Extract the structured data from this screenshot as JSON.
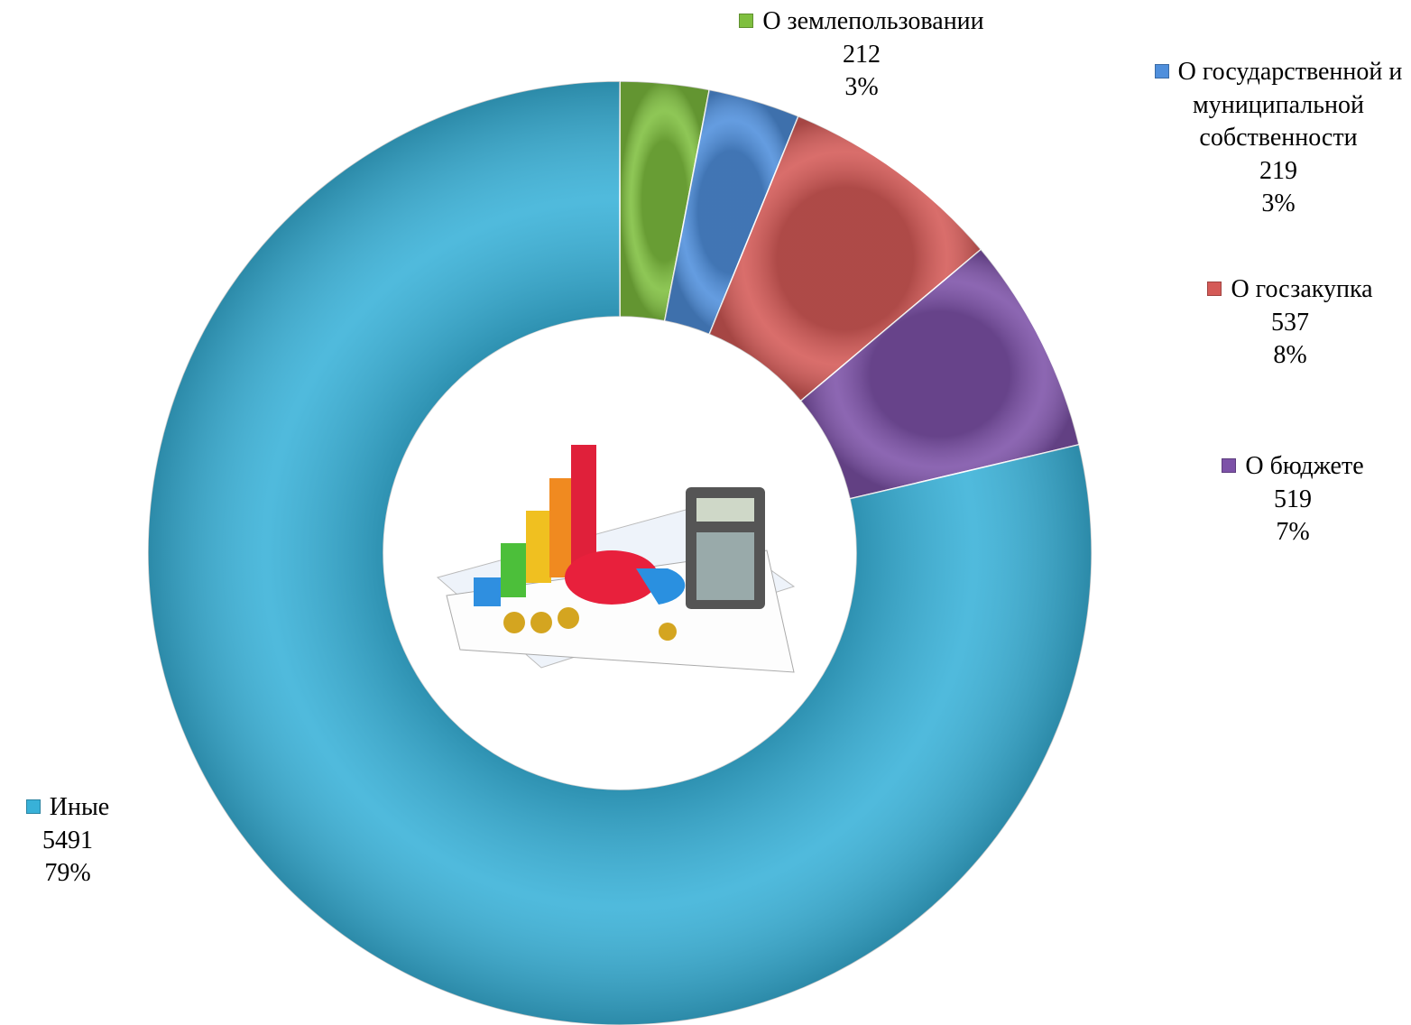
{
  "chart_data": {
    "type": "donut",
    "categories": [
      "О землепользовании",
      "О государственной и муниципальной собственности",
      "О госзакупка",
      "О бюджете",
      "Иные"
    ],
    "values": [
      212,
      219,
      537,
      519,
      5491
    ],
    "percent_labels": [
      "3%",
      "3%",
      "8%",
      "7%",
      "79%"
    ],
    "colors": [
      "#7fbf3f",
      "#4f8fdc",
      "#d45a57",
      "#7d52a8",
      "#38b1d8"
    ]
  }
}
